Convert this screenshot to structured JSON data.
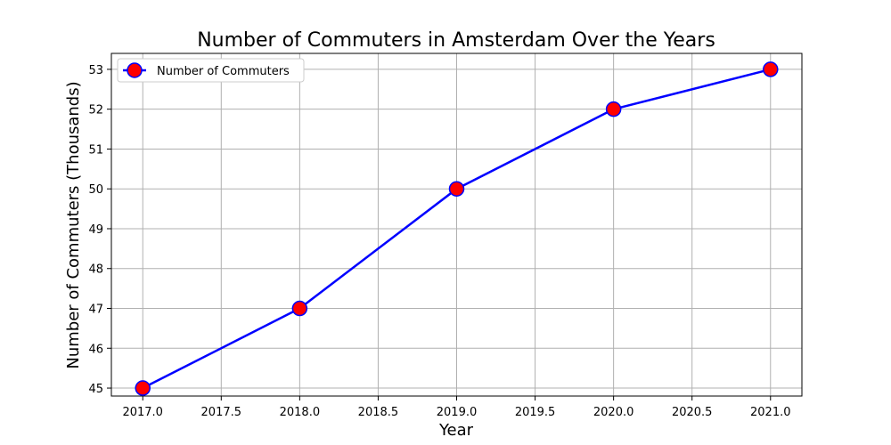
{
  "chart_data": {
    "type": "line",
    "title": "Number of Commuters in Amsterdam Over the Years",
    "xlabel": "Year",
    "ylabel": "Number of Commuters (Thousands)",
    "x": [
      2017,
      2018,
      2019,
      2020,
      2021
    ],
    "series": [
      {
        "name": "Number of Commuters",
        "values": [
          45,
          47,
          50,
          52,
          53
        ],
        "line_color": "#0000ff",
        "marker_face": "#ff0000",
        "marker_edge": "#0000ff"
      }
    ],
    "xlim": [
      2016.8,
      2021.2
    ],
    "ylim": [
      44.8,
      53.4
    ],
    "xticks": [
      "2017.0",
      "2017.5",
      "2018.0",
      "2018.5",
      "2019.0",
      "2019.5",
      "2020.0",
      "2020.5",
      "2021.0"
    ],
    "yticks": [
      "45",
      "46",
      "47",
      "48",
      "49",
      "50",
      "51",
      "52",
      "53"
    ],
    "grid": true,
    "legend": "top-left"
  }
}
